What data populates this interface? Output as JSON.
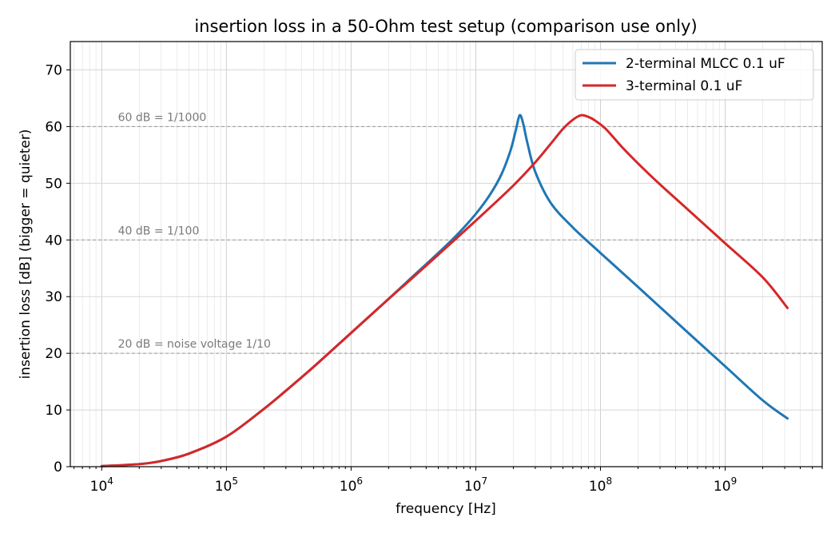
{
  "chart_data": {
    "type": "line",
    "title": "insertion loss in a 50-Ohm test setup (comparison use only)",
    "xlabel": "frequency [Hz]",
    "ylabel": "insertion loss [dB]  (bigger = quieter)",
    "xscale": "log",
    "xlim": [
      5600.0,
      6000000000.0
    ],
    "ylim": [
      0,
      75
    ],
    "x_major_ticks": [
      {
        "value": 10000.0,
        "base": "10",
        "exp": "4"
      },
      {
        "value": 100000.0,
        "base": "10",
        "exp": "5"
      },
      {
        "value": 1000000.0,
        "base": "10",
        "exp": "6"
      },
      {
        "value": 10000000.0,
        "base": "10",
        "exp": "7"
      },
      {
        "value": 100000000.0,
        "base": "10",
        "exp": "8"
      },
      {
        "value": 1000000000.0,
        "base": "10",
        "exp": "9"
      }
    ],
    "y_ticks": [
      {
        "value": 0,
        "label": "0"
      },
      {
        "value": 10,
        "label": "10"
      },
      {
        "value": 20,
        "label": "20"
      },
      {
        "value": 30,
        "label": "30"
      },
      {
        "value": 40,
        "label": "40"
      },
      {
        "value": 50,
        "label": "50"
      },
      {
        "value": 60,
        "label": "60"
      },
      {
        "value": 70,
        "label": "70"
      }
    ],
    "grid": true,
    "legend": "top-right",
    "reference_lines": [
      {
        "y": 60,
        "label": "60 dB = 1/1000",
        "label_x": 13500.0
      },
      {
        "y": 40,
        "label": "40 dB = 1/100",
        "label_x": 13500.0
      },
      {
        "y": 20,
        "label": "20 dB = noise voltage 1/10",
        "label_x": 13500.0
      }
    ],
    "series": [
      {
        "name": "2-terminal MLCC 0.1 uF",
        "color": "#1f77b4",
        "x": [
          10000.0,
          20000.0,
          30000.0,
          50000.0,
          100000.0,
          200000.0,
          300000.0,
          500000.0,
          1000000.0,
          2000000.0,
          3000000.0,
          5000000.0,
          7000000.0,
          10000000.0,
          13000000.0,
          16000000.0,
          19000000.0,
          21000000.0,
          22500000.0,
          24000000.0,
          26000000.0,
          30000000.0,
          40000000.0,
          60000000.0,
          100000000.0,
          200000000.0,
          500000000.0,
          1000000000.0,
          2000000000.0,
          3160000000.0
        ],
        "y": [
          0.1,
          0.45,
          1.0,
          2.3,
          5.3,
          10.2,
          13.4,
          17.6,
          23.6,
          29.6,
          33.2,
          37.7,
          40.8,
          44.6,
          48.0,
          51.5,
          55.8,
          59.5,
          62.0,
          60.5,
          57.0,
          52.0,
          46.5,
          42.2,
          37.7,
          31.7,
          23.7,
          17.7,
          11.7,
          8.5
        ]
      },
      {
        "name": "3-terminal 0.1 uF",
        "color": "#d62728",
        "x": [
          10000.0,
          20000.0,
          30000.0,
          50000.0,
          100000.0,
          200000.0,
          300000.0,
          500000.0,
          1000000.0,
          2000000.0,
          3000000.0,
          5000000.0,
          10000000.0,
          20000000.0,
          30000000.0,
          40000000.0,
          50000000.0,
          60000000.0,
          70000000.0,
          80000000.0,
          90000000.0,
          110000000.0,
          150000000.0,
          200000000.0,
          300000000.0,
          500000000.0,
          1000000000.0,
          2000000000.0,
          3160000000.0
        ],
        "y": [
          0.1,
          0.45,
          1.0,
          2.3,
          5.3,
          10.2,
          13.4,
          17.6,
          23.6,
          29.6,
          33.0,
          37.4,
          43.4,
          49.6,
          53.7,
          57.0,
          59.6,
          61.2,
          62.0,
          61.7,
          61.1,
          59.6,
          56.3,
          53.5,
          49.8,
          45.4,
          39.4,
          33.4,
          28.0
        ]
      }
    ]
  }
}
